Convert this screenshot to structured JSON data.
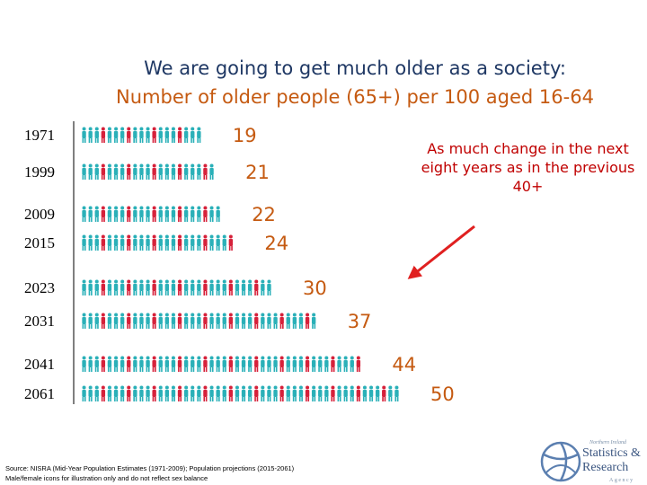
{
  "title_line1": "We are going to get much older as a society:",
  "title_line2": "Number of older people (65+) per 100 aged 16-64",
  "annotation": "As much change in the next eight years as in the previous  40+",
  "source_line1": "Source: NISRA (Mid-Year Population Estimates (1971-2009); Population projections (2015-2061)",
  "source_line2": "Male/female icons for illustration only and do not reflect sex balance",
  "logo": {
    "text_top": "Northern Ireland",
    "text_statistics": "Statistics &",
    "text_research": "Research",
    "text_agency": "Agency"
  },
  "colors": {
    "title1": "#1f3864",
    "title2": "#c55a11",
    "annotation": "#c00000",
    "arrow": "#e02020",
    "male_icon": "#2ab0b8",
    "female_icon": "#d6213a",
    "past_value": "#c55a11",
    "projection_value": "#c55a11"
  },
  "chart_data": {
    "type": "bar",
    "title": "Number of older people (65+) per 100 aged 16-64",
    "categories": [
      "1971",
      "1999",
      "2009",
      "2015",
      "2023",
      "2031",
      "2041",
      "2061"
    ],
    "values": [
      19,
      21,
      22,
      24,
      30,
      37,
      44,
      50
    ],
    "projection_categories": [
      "2015",
      "2023",
      "2031",
      "2041",
      "2061"
    ],
    "xlabel": "",
    "ylabel": "",
    "orientation": "horizontal"
  }
}
